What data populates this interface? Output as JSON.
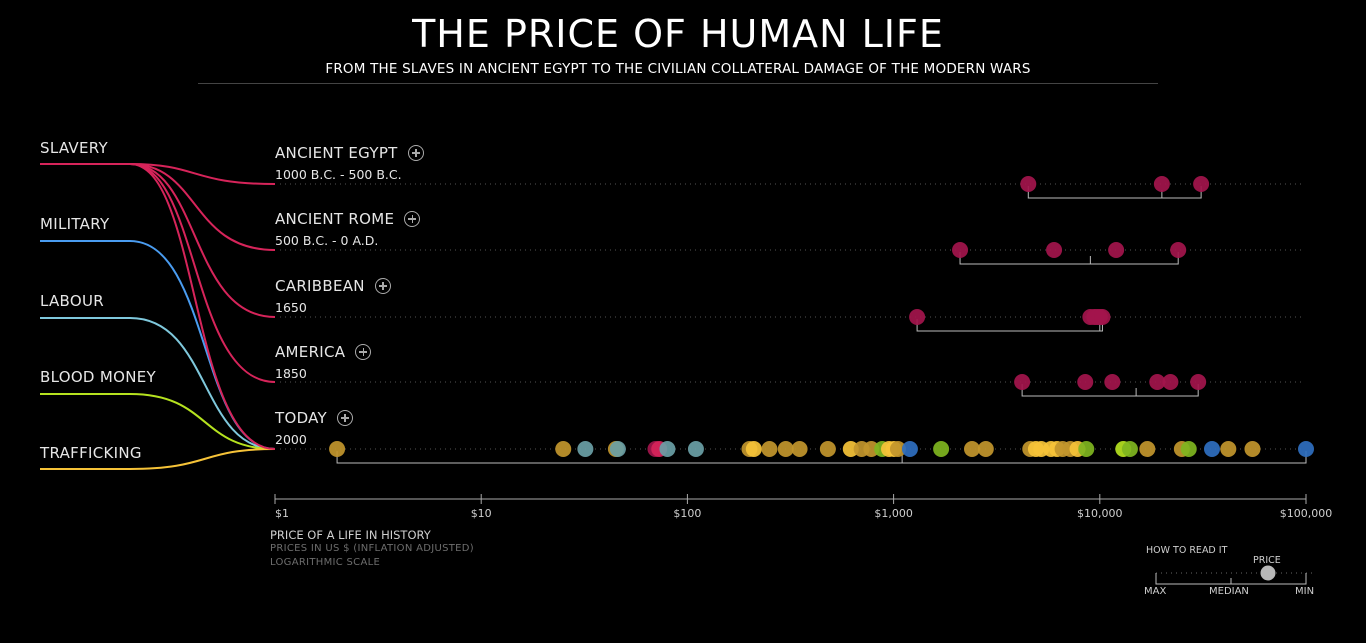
{
  "header": {
    "title": "THE PRICE OF HUMAN LIFE",
    "subtitle": "FROM THE SLAVES IN ANCIENT EGYPT TO THE CIVILIAN COLLATERAL DAMAGE OF THE MODERN WARS"
  },
  "categories": [
    {
      "label": "SLAVERY",
      "color": "#d6245a"
    },
    {
      "label": "MILITARY",
      "color": "#4a9cf0"
    },
    {
      "label": "LABOUR",
      "color": "#7fc8dc"
    },
    {
      "label": "BLOOD MONEY",
      "color": "#b5e21f"
    },
    {
      "label": "TRAFFICKING",
      "color": "#f6c338"
    }
  ],
  "eras": [
    {
      "name": "ANCIENT EGYPT",
      "date": "1000 B.C. - 500 B.C."
    },
    {
      "name": "ANCIENT ROME",
      "date": "500 B.C. - 0 A.D."
    },
    {
      "name": "CARIBBEAN",
      "date": "1650"
    },
    {
      "name": "AMERICA",
      "date": "1850"
    },
    {
      "name": "TODAY",
      "date": "2000"
    }
  ],
  "axis": {
    "title": "PRICE OF A LIFE IN HISTORY",
    "note1": "PRICES IN US $ (INFLATION ADJUSTED)",
    "note2": "LOGARITHMIC SCALE"
  },
  "legend": {
    "title": "HOW TO READ IT",
    "price": "PRICE",
    "max": "MAX",
    "median": "MEDIAN",
    "min": "MIN"
  },
  "chart_data": {
    "type": "scatter",
    "scale": "log",
    "xlim": [
      1,
      100000
    ],
    "ticks": [
      {
        "value": 1,
        "label": "$1"
      },
      {
        "value": 10,
        "label": "$10"
      },
      {
        "value": 100,
        "label": "$100"
      },
      {
        "value": 1000,
        "label": "$1,000"
      },
      {
        "value": 10000,
        "label": "$10,000"
      },
      {
        "value": 100000,
        "label": "$100,000"
      }
    ],
    "colors": {
      "slavery": "#a3154c",
      "slavery_today": "#d6245a",
      "military": "#2f6fc0",
      "labour": "#6aa0a6",
      "blood": "#7fb51f",
      "blood_bright": "#b5e21f",
      "traffick": "#c2962c",
      "traffick_bright": "#f6c338"
    },
    "rows": [
      {
        "era": "ANCIENT EGYPT",
        "median": 20000,
        "points": [
          {
            "v": 4500,
            "c": "slavery"
          },
          {
            "v": 20000,
            "c": "slavery"
          },
          {
            "v": 31000,
            "c": "slavery"
          }
        ]
      },
      {
        "era": "ANCIENT ROME",
        "median": 9000,
        "points": [
          {
            "v": 2100,
            "c": "slavery"
          },
          {
            "v": 6000,
            "c": "slavery"
          },
          {
            "v": 12000,
            "c": "slavery"
          },
          {
            "v": 24000,
            "c": "slavery"
          }
        ]
      },
      {
        "era": "CARIBBEAN",
        "median": 10000,
        "points": [
          {
            "v": 1300,
            "c": "slavery"
          },
          {
            "v": 9000,
            "c": "slavery"
          },
          {
            "v": 9400,
            "c": "slavery"
          },
          {
            "v": 9700,
            "c": "slavery"
          },
          {
            "v": 10000,
            "c": "slavery"
          },
          {
            "v": 10300,
            "c": "slavery"
          }
        ]
      },
      {
        "era": "AMERICA",
        "median": 15000,
        "points": [
          {
            "v": 4200,
            "c": "slavery"
          },
          {
            "v": 8500,
            "c": "slavery"
          },
          {
            "v": 11500,
            "c": "slavery"
          },
          {
            "v": 19000,
            "c": "slavery"
          },
          {
            "v": 22000,
            "c": "slavery"
          },
          {
            "v": 30000,
            "c": "slavery"
          }
        ]
      },
      {
        "era": "TODAY",
        "median": 1100,
        "points": [
          {
            "v": 2,
            "c": "traffick"
          },
          {
            "v": 25,
            "c": "traffick"
          },
          {
            "v": 32,
            "c": "labour"
          },
          {
            "v": 45,
            "c": "traffick"
          },
          {
            "v": 46,
            "c": "labour"
          },
          {
            "v": 70,
            "c": "slavery"
          },
          {
            "v": 73,
            "c": "slavery_today"
          },
          {
            "v": 80,
            "c": "labour"
          },
          {
            "v": 110,
            "c": "labour"
          },
          {
            "v": 200,
            "c": "traffick"
          },
          {
            "v": 210,
            "c": "traffick_bright"
          },
          {
            "v": 250,
            "c": "traffick"
          },
          {
            "v": 300,
            "c": "traffick"
          },
          {
            "v": 350,
            "c": "traffick"
          },
          {
            "v": 480,
            "c": "traffick"
          },
          {
            "v": 620,
            "c": "traffick_bright"
          },
          {
            "v": 700,
            "c": "traffick"
          },
          {
            "v": 780,
            "c": "traffick"
          },
          {
            "v": 880,
            "c": "blood"
          },
          {
            "v": 950,
            "c": "traffick_bright"
          },
          {
            "v": 1000,
            "c": "traffick_bright"
          },
          {
            "v": 1050,
            "c": "traffick"
          },
          {
            "v": 1200,
            "c": "military"
          },
          {
            "v": 1700,
            "c": "blood"
          },
          {
            "v": 2400,
            "c": "traffick"
          },
          {
            "v": 2800,
            "c": "traffick"
          },
          {
            "v": 4600,
            "c": "traffick"
          },
          {
            "v": 4900,
            "c": "traffick_bright"
          },
          {
            "v": 5200,
            "c": "traffick_bright"
          },
          {
            "v": 5800,
            "c": "traffick_bright"
          },
          {
            "v": 6200,
            "c": "traffick_bright"
          },
          {
            "v": 6600,
            "c": "traffick"
          },
          {
            "v": 7200,
            "c": "traffick"
          },
          {
            "v": 7800,
            "c": "traffick_bright"
          },
          {
            "v": 8600,
            "c": "blood"
          },
          {
            "v": 13000,
            "c": "blood_bright"
          },
          {
            "v": 14000,
            "c": "blood"
          },
          {
            "v": 17000,
            "c": "traffick"
          },
          {
            "v": 25000,
            "c": "traffick"
          },
          {
            "v": 27000,
            "c": "blood"
          },
          {
            "v": 35000,
            "c": "military"
          },
          {
            "v": 42000,
            "c": "traffick"
          },
          {
            "v": 55000,
            "c": "traffick"
          },
          {
            "v": 100000,
            "c": "military"
          }
        ]
      }
    ]
  }
}
